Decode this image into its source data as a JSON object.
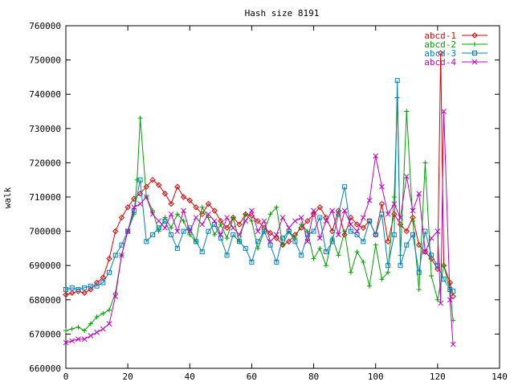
{
  "chart_data": {
    "type": "line",
    "title": "Hash size 8191",
    "xlabel": "",
    "ylabel": "walk",
    "xlim": [
      0,
      140
    ],
    "ylim": [
      660000,
      760000
    ],
    "xticks": [
      "0",
      "20",
      "40",
      "60",
      "80",
      "100",
      "120",
      "140"
    ],
    "yticks": [
      "660000",
      "670000",
      "680000",
      "690000",
      "700000",
      "710000",
      "720000",
      "730000",
      "740000",
      "750000",
      "760000"
    ],
    "grid": false,
    "legend_position": "top-right",
    "series": [
      {
        "name": "abcd-1",
        "color": "#dd0000",
        "marker": "diamond",
        "x": [
          0,
          2,
          4,
          6,
          8,
          10,
          12,
          14,
          16,
          18,
          20,
          22,
          24,
          26,
          28,
          30,
          32,
          34,
          36,
          38,
          40,
          42,
          44,
          46,
          48,
          50,
          52,
          54,
          56,
          58,
          60,
          62,
          64,
          66,
          68,
          70,
          72,
          74,
          76,
          78,
          80,
          82,
          84,
          86,
          88,
          90,
          92,
          94,
          96,
          98,
          100,
          102,
          104,
          106,
          108,
          110,
          112,
          114,
          116,
          118,
          120,
          121,
          122,
          124,
          125
        ],
        "y": [
          681500,
          682000,
          682500,
          682000,
          683000,
          685000,
          686500,
          692000,
          700000,
          704000,
          707000,
          709500,
          711000,
          713000,
          715000,
          713500,
          711000,
          708000,
          713000,
          710000,
          709000,
          707000,
          705000,
          708000,
          706000,
          703000,
          701000,
          704000,
          702000,
          705000,
          704500,
          703000,
          701000,
          699500,
          698000,
          696000,
          697000,
          699000,
          701000,
          703000,
          705000,
          707000,
          704000,
          700000,
          706000,
          699000,
          704000,
          702000,
          701000,
          703000,
          699000,
          708000,
          697000,
          705000,
          702000,
          700000,
          704000,
          696000,
          694000,
          692000,
          689000,
          752000,
          690000,
          685000,
          681000
        ]
      },
      {
        "name": "abcd-2",
        "color": "#00a000",
        "marker": "plus",
        "x": [
          0,
          2,
          4,
          6,
          8,
          10,
          12,
          14,
          16,
          18,
          20,
          22,
          23,
          24,
          26,
          28,
          30,
          32,
          34,
          36,
          38,
          40,
          42,
          44,
          46,
          48,
          50,
          52,
          54,
          56,
          58,
          60,
          62,
          64,
          66,
          68,
          70,
          72,
          74,
          76,
          78,
          80,
          82,
          84,
          86,
          88,
          90,
          92,
          94,
          96,
          98,
          100,
          102,
          104,
          106,
          107,
          108,
          110,
          112,
          114,
          116,
          118,
          120,
          122,
          124,
          125
        ],
        "y": [
          671000,
          671500,
          672000,
          671000,
          673000,
          675000,
          676000,
          677000,
          682000,
          693000,
          700000,
          705000,
          715000,
          733000,
          710000,
          706000,
          700000,
          704000,
          701000,
          705000,
          703000,
          699000,
          697000,
          707000,
          704000,
          699000,
          702000,
          698000,
          704000,
          697000,
          705000,
          703000,
          695000,
          700000,
          705000,
          707000,
          696000,
          700000,
          698000,
          702000,
          700000,
          692000,
          695000,
          690000,
          698000,
          693000,
          700000,
          688000,
          694000,
          691000,
          684000,
          696000,
          686000,
          688000,
          710000,
          739000,
          693000,
          735000,
          703000,
          683000,
          720000,
          687000,
          680000,
          690000,
          683000,
          674000
        ]
      },
      {
        "name": "abcd-3",
        "color": "#0080c0",
        "marker": "square",
        "x": [
          0,
          2,
          4,
          6,
          8,
          10,
          12,
          14,
          16,
          18,
          20,
          22,
          24,
          26,
          28,
          30,
          32,
          34,
          36,
          38,
          40,
          42,
          44,
          46,
          48,
          50,
          52,
          54,
          56,
          58,
          60,
          62,
          64,
          66,
          68,
          70,
          72,
          74,
          76,
          78,
          80,
          82,
          84,
          86,
          88,
          90,
          92,
          94,
          96,
          98,
          100,
          102,
          104,
          106,
          107,
          108,
          110,
          112,
          114,
          116,
          118,
          120,
          122,
          124,
          125
        ],
        "y": [
          683000,
          683500,
          683000,
          683500,
          684000,
          684000,
          685000,
          688000,
          693000,
          696000,
          700000,
          706000,
          715000,
          697000,
          699000,
          701000,
          703000,
          699000,
          695000,
          700000,
          701000,
          697000,
          694000,
          700000,
          702000,
          698000,
          693000,
          699000,
          697000,
          695000,
          691000,
          697000,
          700000,
          696000,
          691000,
          698000,
          700000,
          697000,
          693000,
          699000,
          700000,
          704000,
          694000,
          697000,
          705000,
          713000,
          700000,
          699000,
          697000,
          703000,
          699000,
          705000,
          690000,
          699000,
          744000,
          690000,
          696000,
          699000,
          688000,
          700000,
          693000,
          690000,
          686000,
          683000,
          682500
        ]
      },
      {
        "name": "abcd-4",
        "color": "#c000c0",
        "marker": "cross",
        "x": [
          0,
          2,
          4,
          6,
          8,
          10,
          12,
          14,
          16,
          18,
          20,
          22,
          24,
          26,
          28,
          30,
          32,
          34,
          36,
          38,
          40,
          42,
          44,
          46,
          48,
          50,
          52,
          54,
          56,
          58,
          60,
          62,
          64,
          66,
          68,
          70,
          72,
          74,
          76,
          78,
          80,
          82,
          84,
          86,
          88,
          90,
          92,
          94,
          96,
          98,
          100,
          102,
          104,
          106,
          108,
          110,
          112,
          114,
          116,
          118,
          120,
          121,
          122,
          124,
          125
        ],
        "y": [
          667500,
          668000,
          668500,
          668500,
          669500,
          670500,
          671500,
          673000,
          681000,
          693000,
          700000,
          707000,
          708000,
          710000,
          705000,
          703000,
          701000,
          705000,
          700000,
          706000,
          700000,
          704000,
          702000,
          705000,
          703000,
          699000,
          704000,
          701000,
          699000,
          703000,
          706000,
          700000,
          703000,
          697000,
          699000,
          704000,
          701000,
          703000,
          704000,
          697000,
          706000,
          698000,
          703000,
          706000,
          699000,
          706000,
          702000,
          700000,
          704000,
          709000,
          722000,
          713000,
          705000,
          708000,
          704000,
          716000,
          706000,
          711000,
          694000,
          698000,
          700000,
          679000,
          735000,
          680000,
          667000
        ]
      }
    ]
  }
}
